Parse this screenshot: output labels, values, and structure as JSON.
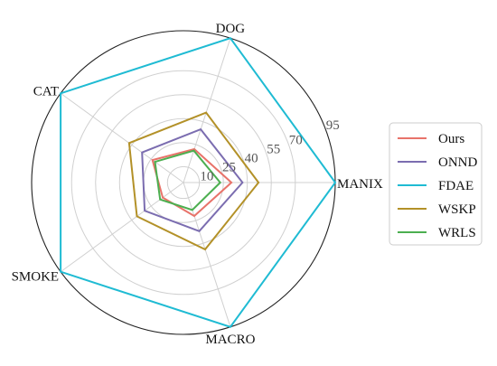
{
  "chart_data": {
    "type": "radar",
    "axes": [
      "MANIX",
      "DOG",
      "CAT",
      "SMOKE",
      "MACRO"
    ],
    "rlim": [
      0,
      95
    ],
    "rticks": [
      10,
      25,
      40,
      55,
      70,
      95
    ],
    "rtick_labels": [
      "10",
      "25",
      "40",
      "55",
      "70",
      "95"
    ],
    "grid": true,
    "legend_position": "right",
    "series": [
      {
        "name": "Ours",
        "color": "#e8736a",
        "values": [
          30,
          22,
          24,
          16,
          22
        ]
      },
      {
        "name": "ONND",
        "color": "#7b6db0",
        "values": [
          37,
          35,
          32,
          30,
          32
        ]
      },
      {
        "name": "FDAE",
        "color": "#1fbbd3",
        "values": [
          95,
          95,
          95,
          95,
          95
        ]
      },
      {
        "name": "WSKP",
        "color": "#b39128",
        "values": [
          47,
          46,
          42,
          36,
          44
        ]
      },
      {
        "name": "WRLS",
        "color": "#4caf50",
        "values": [
          23,
          21,
          22,
          18,
          18
        ]
      }
    ]
  }
}
